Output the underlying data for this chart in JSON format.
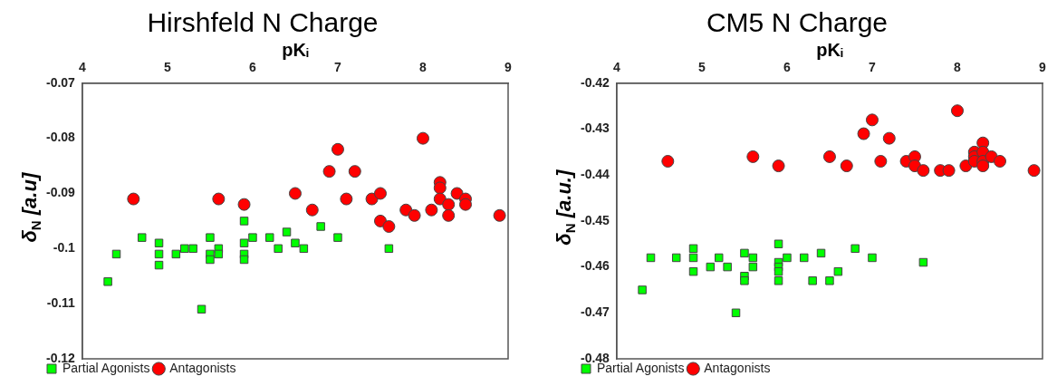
{
  "chart_data": [
    {
      "type": "scatter",
      "title": "Hirshfeld N Charge",
      "xlabel": "pKᵢ",
      "ylabel": "δ$_{N}$ [a.u]",
      "xlim": [
        4,
        9
      ],
      "xticks": [
        4,
        5,
        6,
        7,
        8,
        9
      ],
      "ylim": [
        -0.12,
        -0.07
      ],
      "yticks": [
        -0.12,
        -0.11,
        -0.1,
        -0.09,
        -0.08,
        -0.07
      ],
      "legend": "bottom left",
      "grid": false,
      "series": [
        {
          "name": "Partial Agonists",
          "color": "#00ff00",
          "marker": "square",
          "x": [
            4.3,
            4.4,
            4.7,
            4.9,
            4.9,
            4.9,
            5.1,
            5.2,
            5.3,
            5.4,
            5.5,
            5.5,
            5.5,
            5.6,
            5.6,
            5.9,
            5.9,
            5.9,
            5.9,
            6.0,
            6.2,
            6.3,
            6.4,
            6.5,
            6.6,
            6.8,
            7.0,
            7.6
          ],
          "values": [
            -0.106,
            -0.101,
            -0.098,
            -0.099,
            -0.101,
            -0.103,
            -0.101,
            -0.1,
            -0.1,
            -0.111,
            -0.098,
            -0.101,
            -0.102,
            -0.1,
            -0.101,
            -0.095,
            -0.099,
            -0.101,
            -0.102,
            -0.098,
            -0.098,
            -0.1,
            -0.097,
            -0.099,
            -0.1,
            -0.096,
            -0.098,
            -0.1
          ]
        },
        {
          "name": "Antagonists",
          "color": "#ff0000",
          "marker": "circle",
          "x": [
            4.6,
            5.6,
            5.9,
            6.5,
            6.7,
            6.9,
            7.0,
            7.2,
            7.1,
            7.4,
            7.5,
            7.5,
            7.6,
            7.8,
            7.9,
            8.0,
            8.1,
            8.2,
            8.2,
            8.2,
            8.3,
            8.3,
            8.4,
            8.5,
            8.5,
            8.9
          ],
          "values": [
            -0.091,
            -0.091,
            -0.092,
            -0.09,
            -0.093,
            -0.086,
            -0.082,
            -0.086,
            -0.091,
            -0.091,
            -0.09,
            -0.095,
            -0.096,
            -0.093,
            -0.094,
            -0.08,
            -0.093,
            -0.088,
            -0.089,
            -0.091,
            -0.092,
            -0.094,
            -0.09,
            -0.091,
            -0.092,
            -0.094
          ]
        }
      ]
    },
    {
      "type": "scatter",
      "title": "CM5 N Charge",
      "xlabel": "pKᵢ",
      "ylabel": "δ$_{N}$ [a.u.]",
      "xlim": [
        4,
        9
      ],
      "xticks": [
        4,
        5,
        6,
        7,
        8,
        9
      ],
      "ylim": [
        -0.48,
        -0.42
      ],
      "yticks": [
        -0.48,
        -0.47,
        -0.46,
        -0.45,
        -0.44,
        -0.43,
        -0.42
      ],
      "legend": "bottom left",
      "grid": false,
      "series": [
        {
          "name": "Partial Agonists",
          "color": "#00ff00",
          "marker": "square",
          "x": [
            4.3,
            4.4,
            4.7,
            4.9,
            4.9,
            4.9,
            5.1,
            5.2,
            5.3,
            5.4,
            5.5,
            5.5,
            5.5,
            5.6,
            5.6,
            5.9,
            5.9,
            5.9,
            5.9,
            5.9,
            6.0,
            6.2,
            6.3,
            6.4,
            6.5,
            6.6,
            6.8,
            7.0,
            7.6
          ],
          "values": [
            -0.465,
            -0.458,
            -0.458,
            -0.456,
            -0.458,
            -0.461,
            -0.46,
            -0.458,
            -0.46,
            -0.47,
            -0.457,
            -0.462,
            -0.463,
            -0.458,
            -0.46,
            -0.455,
            -0.459,
            -0.46,
            -0.461,
            -0.463,
            -0.458,
            -0.458,
            -0.463,
            -0.457,
            -0.463,
            -0.461,
            -0.456,
            -0.458,
            -0.459
          ]
        },
        {
          "name": "Antagonists",
          "color": "#ff0000",
          "marker": "circle",
          "x": [
            4.6,
            5.6,
            5.9,
            6.5,
            6.7,
            6.9,
            7.0,
            7.2,
            7.1,
            7.4,
            7.5,
            7.5,
            7.6,
            7.8,
            7.9,
            8.0,
            8.1,
            8.2,
            8.2,
            8.2,
            8.3,
            8.3,
            8.3,
            8.3,
            8.4,
            8.5,
            8.9
          ],
          "values": [
            -0.437,
            -0.436,
            -0.438,
            -0.436,
            -0.438,
            -0.431,
            -0.428,
            -0.432,
            -0.437,
            -0.437,
            -0.436,
            -0.438,
            -0.439,
            -0.439,
            -0.439,
            -0.426,
            -0.438,
            -0.435,
            -0.436,
            -0.437,
            -0.433,
            -0.435,
            -0.437,
            -0.438,
            -0.436,
            -0.437,
            -0.439
          ]
        }
      ]
    }
  ]
}
